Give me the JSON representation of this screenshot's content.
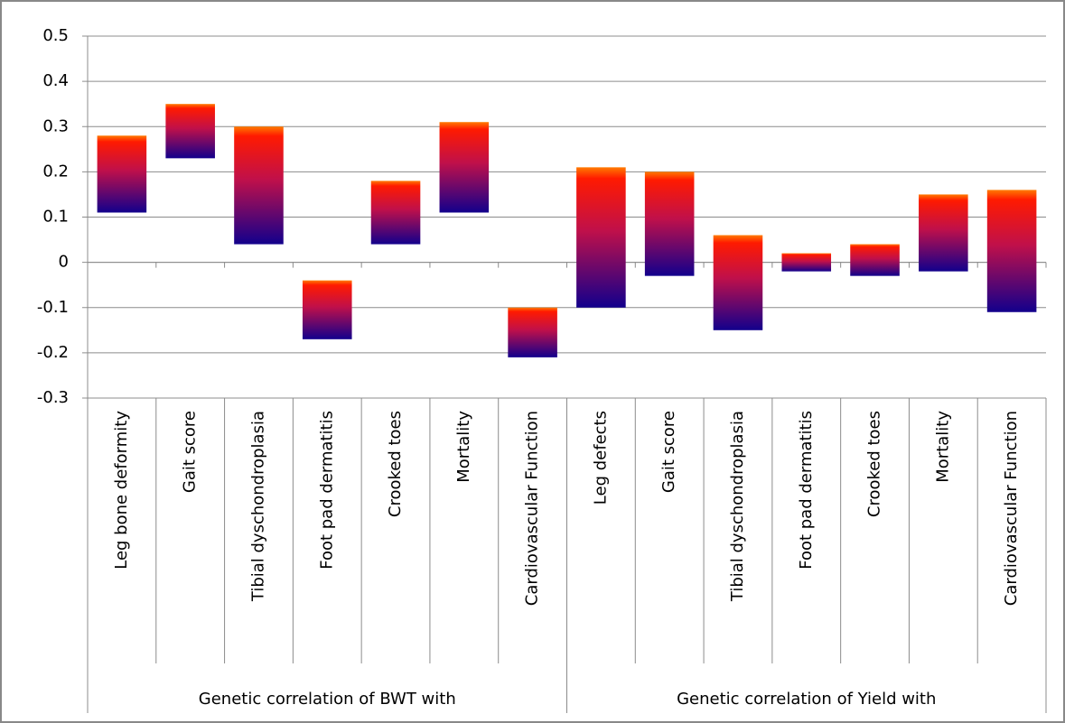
{
  "chart_data": {
    "type": "floating_bar",
    "groups": [
      {
        "name": "Genetic correlation of BWT with",
        "categories": [
          "Leg bone deformity",
          "Gait score",
          "Tibial dyschondroplasia",
          "Foot pad dermatitis",
          "Crooked toes",
          "Mortality",
          "Cardiovascular Function"
        ],
        "low": [
          0.11,
          0.23,
          0.04,
          -0.17,
          0.04,
          0.11,
          -0.21
        ],
        "high": [
          0.28,
          0.35,
          0.3,
          -0.04,
          0.18,
          0.31,
          -0.1
        ]
      },
      {
        "name": "Genetic correlation of Yield with",
        "categories": [
          "Leg defects",
          "Gait score",
          "Tibial dyschondroplasia",
          "Foot pad dermatitis",
          "Crooked toes",
          "Mortality",
          "Cardiovascular Function"
        ],
        "low": [
          -0.1,
          -0.03,
          -0.15,
          -0.02,
          -0.03,
          -0.02,
          -0.11
        ],
        "high": [
          0.21,
          0.2,
          0.06,
          0.02,
          0.04,
          0.15,
          0.16
        ]
      }
    ],
    "ylim": [
      -0.3,
      0.5
    ],
    "yticks": [
      -0.3,
      -0.2,
      -0.1,
      0,
      0.1,
      0.2,
      0.3,
      0.4,
      0.5
    ],
    "grid": true
  }
}
